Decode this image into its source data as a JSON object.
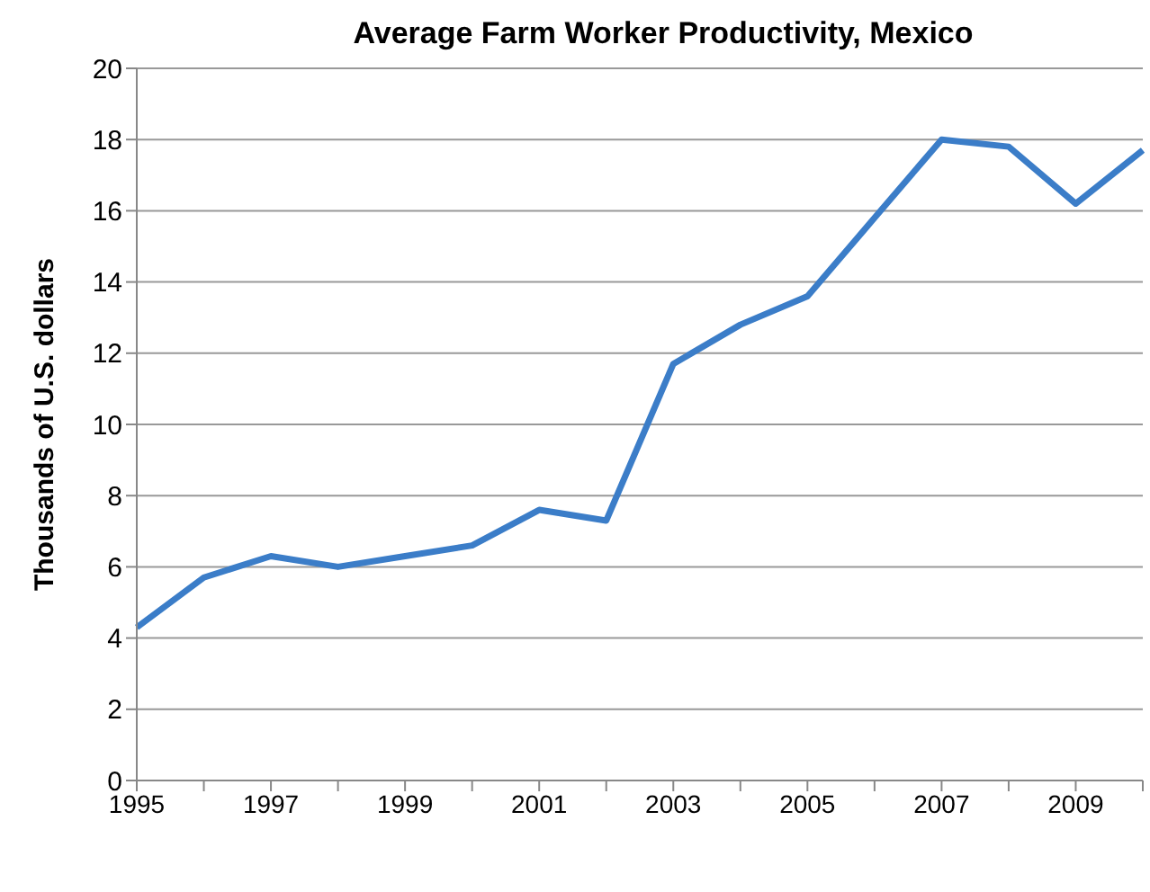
{
  "chart_data": {
    "type": "line",
    "title": "Average Farm Worker Productivity, Mexico",
    "ylabel": "Thousands of U.S. dollars",
    "categories": [
      "1995",
      null,
      "1997",
      null,
      "1999",
      null,
      "2001",
      null,
      "2003",
      null,
      "2005",
      null,
      "2007",
      null,
      "2009",
      null
    ],
    "series": [
      {
        "color": "#3b7dc8",
        "values": [
          4.3,
          5.7,
          6.3,
          6.0,
          6.3,
          6.6,
          7.6,
          7.3,
          11.7,
          12.8,
          13.6,
          15.8,
          18.0,
          17.8,
          16.2,
          17.7
        ]
      }
    ],
    "ylim": [
      0,
      20
    ],
    "yticks": [
      0,
      2,
      4,
      6,
      8,
      10,
      12,
      14,
      16,
      18,
      20
    ],
    "grid": "y",
    "legend": false,
    "marker": "none",
    "line_style": "solid"
  }
}
